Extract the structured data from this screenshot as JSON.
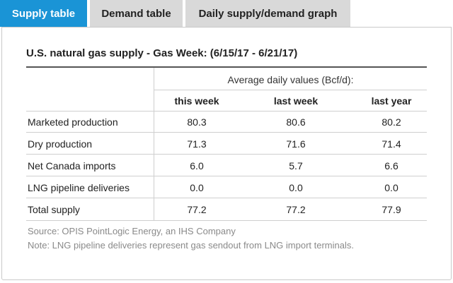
{
  "tabs": [
    {
      "label": "Supply table",
      "active": true
    },
    {
      "label": "Demand table",
      "active": false
    },
    {
      "label": "Daily supply/demand graph",
      "active": false
    }
  ],
  "panel": {
    "title": "U.S. natural gas supply - Gas Week: (6/15/17 - 6/21/17)",
    "group_header": "Average daily values (Bcf/d):",
    "columns": [
      "this week",
      "last week",
      "last year"
    ],
    "rows": [
      {
        "label": "Marketed production",
        "values": [
          "80.3",
          "80.6",
          "80.2"
        ]
      },
      {
        "label": "Dry production",
        "values": [
          "71.3",
          "71.6",
          "71.4"
        ]
      },
      {
        "label": "Net Canada imports",
        "values": [
          "6.0",
          "5.7",
          "6.6"
        ]
      },
      {
        "label": "LNG pipeline deliveries",
        "values": [
          "0.0",
          "0.0",
          "0.0"
        ]
      },
      {
        "label": "Total supply",
        "values": [
          "77.2",
          "77.2",
          "77.9"
        ]
      }
    ],
    "source": "Source: OPIS PointLogic Energy, an IHS Company",
    "note": "Note: LNG pipeline deliveries represent gas sendout from LNG import terminals."
  },
  "colors": {
    "active_tab": "#1a94d6",
    "inactive_tab": "#d9d9d9",
    "footnote_text": "#8a8a8a"
  }
}
